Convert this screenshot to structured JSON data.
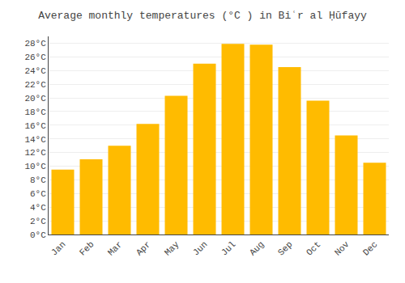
{
  "chart_data": {
    "type": "bar",
    "title": "Average monthly temperatures (°C ) in Biʿr al Ḥūfayy",
    "categories": [
      "Jan",
      "Feb",
      "Mar",
      "Apr",
      "May",
      "Jun",
      "Jul",
      "Aug",
      "Sep",
      "Oct",
      "Nov",
      "Dec"
    ],
    "values": [
      9.5,
      11.0,
      13.0,
      16.2,
      20.3,
      25.0,
      27.9,
      27.8,
      24.5,
      19.6,
      14.5,
      10.5
    ],
    "color": "#FFBB00",
    "ylim": [
      0,
      29
    ],
    "yticks": [
      {
        "value": 0,
        "label": "0°C"
      },
      {
        "value": 2,
        "label": "2°C"
      },
      {
        "value": 4,
        "label": "4°C"
      },
      {
        "value": 6,
        "label": "6°C"
      },
      {
        "value": 8,
        "label": "8°C"
      },
      {
        "value": 10,
        "label": "10°C"
      },
      {
        "value": 12,
        "label": "12°C"
      },
      {
        "value": 14,
        "label": "14°C"
      },
      {
        "value": 16,
        "label": "16°C"
      },
      {
        "value": 18,
        "label": "18°C"
      },
      {
        "value": 20,
        "label": "20°C"
      },
      {
        "value": 22,
        "label": "22°C"
      },
      {
        "value": 24,
        "label": "24°C"
      },
      {
        "value": 26,
        "label": "26°C"
      },
      {
        "value": 28,
        "label": "28°C"
      }
    ],
    "grid": true
  }
}
